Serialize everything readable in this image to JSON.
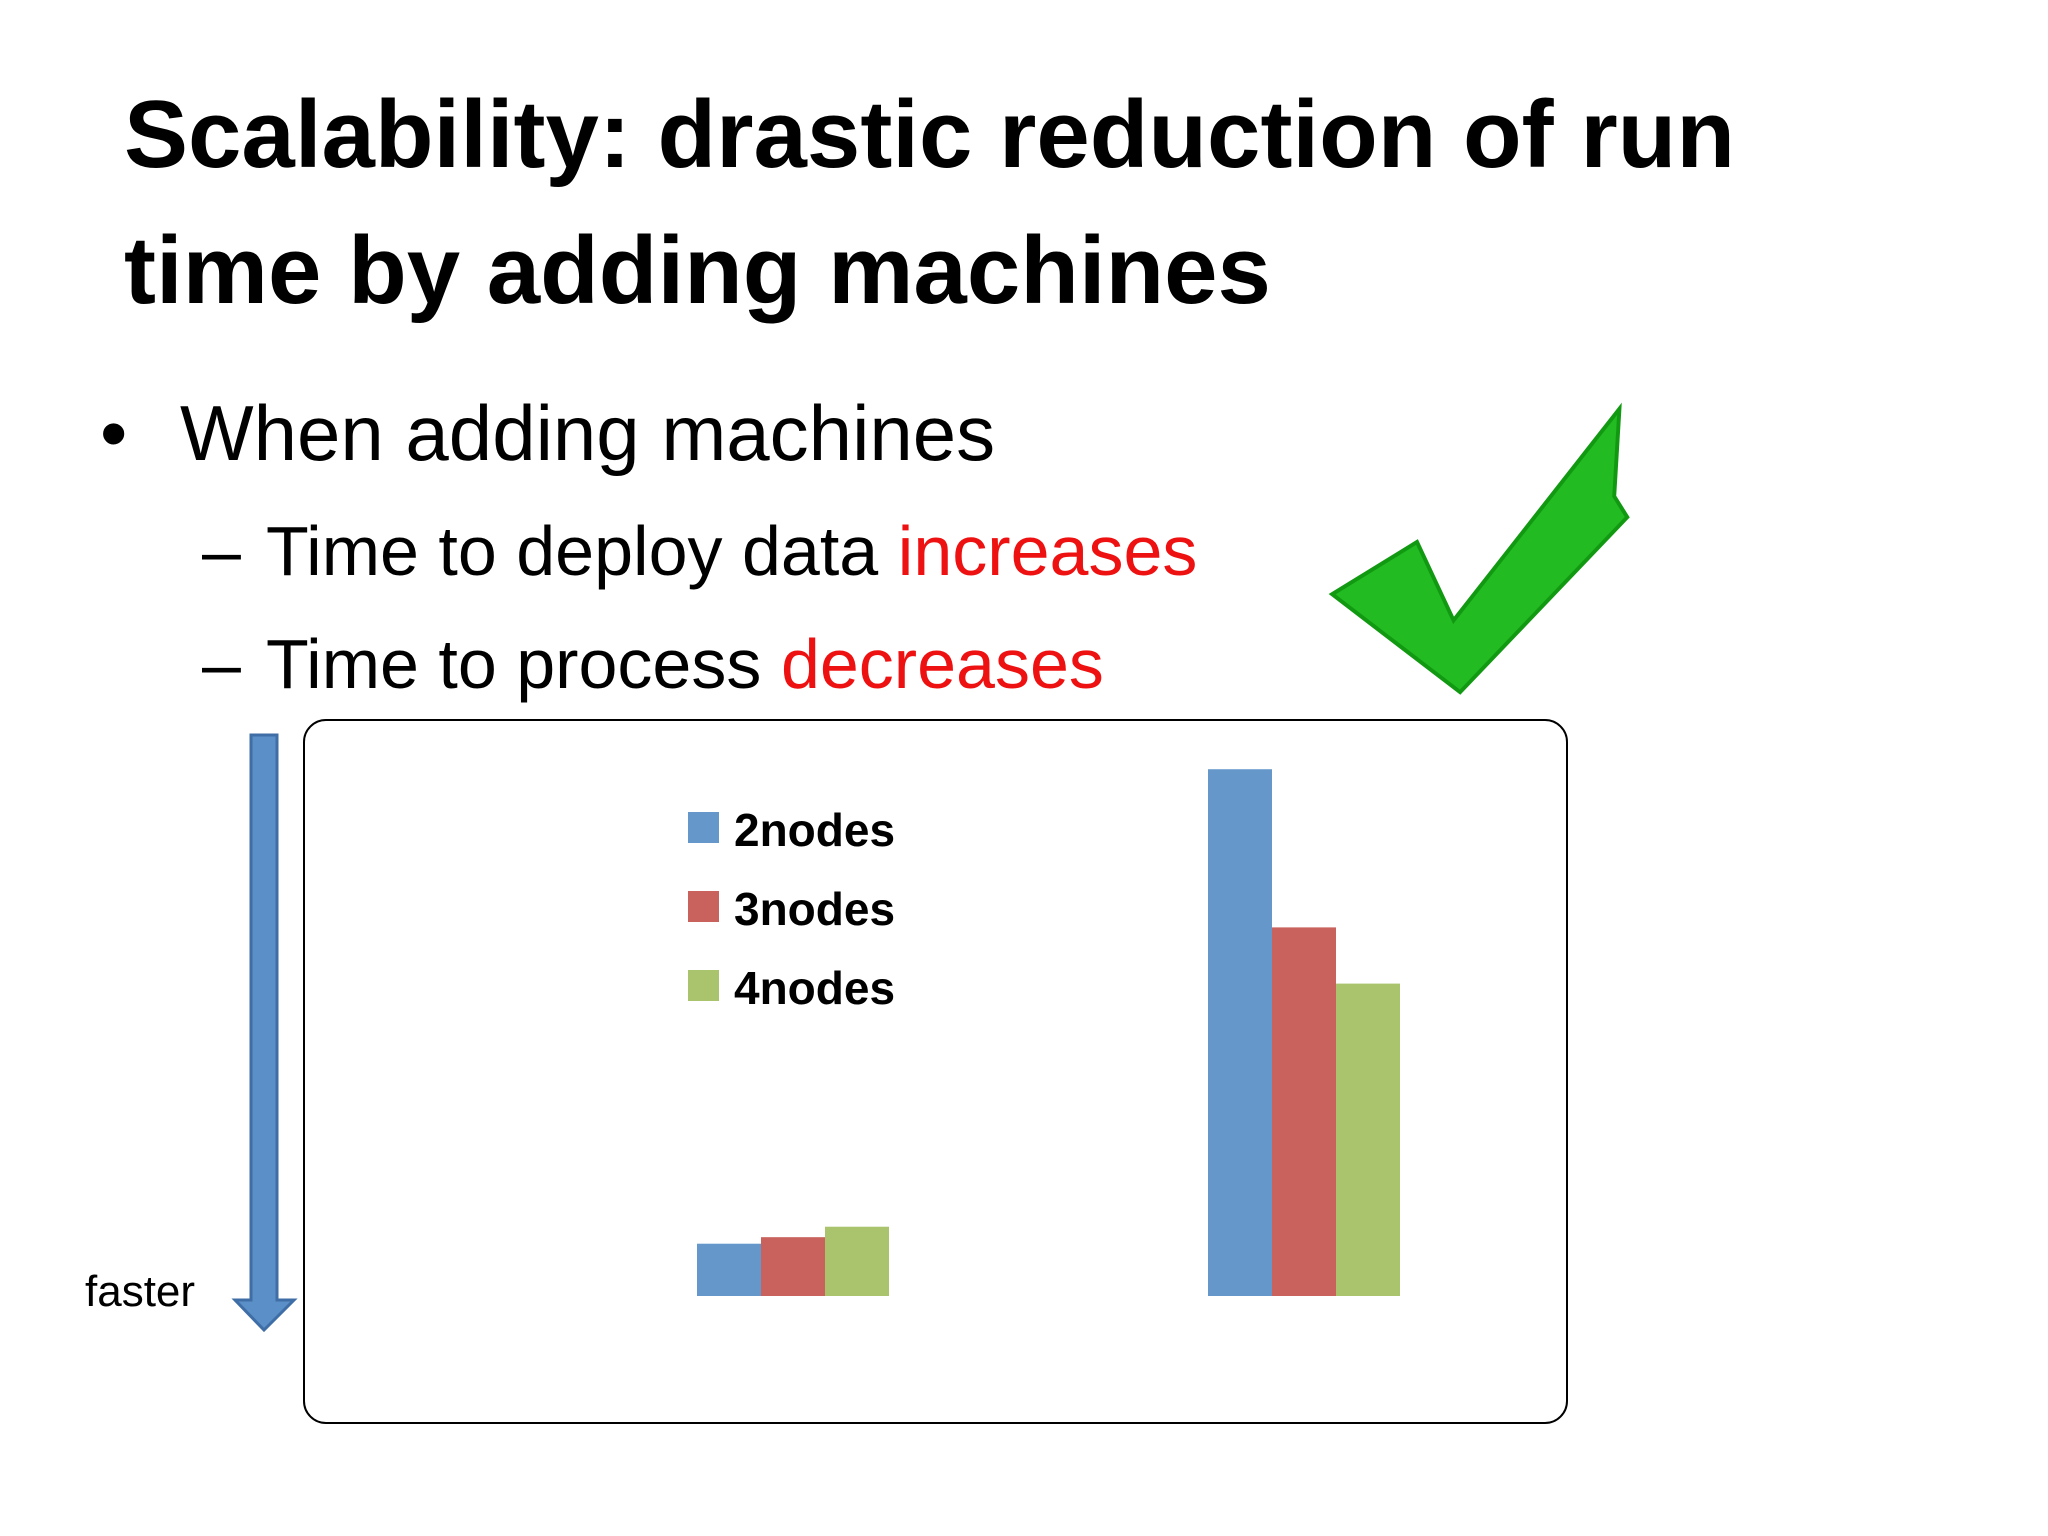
{
  "title": "Scalability: drastic reduction of run time by adding machines",
  "bullets": [
    {
      "marker": "•",
      "text": "When adding machines"
    },
    {
      "marker": "–",
      "text": "Time to deploy data",
      "highlight": "increases"
    },
    {
      "marker": "–",
      "text": "Time to process",
      "highlight": "decreases"
    }
  ],
  "annotation": "faster",
  "chart_data": {
    "type": "bar",
    "categories": [
      null,
      null
    ],
    "series": [
      {
        "name": "2nodes",
        "color": "#6597cb",
        "values": [
          40,
          403
        ]
      },
      {
        "name": "3nodes",
        "color": "#c9625c",
        "values": [
          45,
          282
        ]
      },
      {
        "name": "4nodes",
        "color": "#a9c46c",
        "values": [
          53,
          239
        ]
      }
    ],
    "ylim": [
      0,
      420
    ]
  }
}
